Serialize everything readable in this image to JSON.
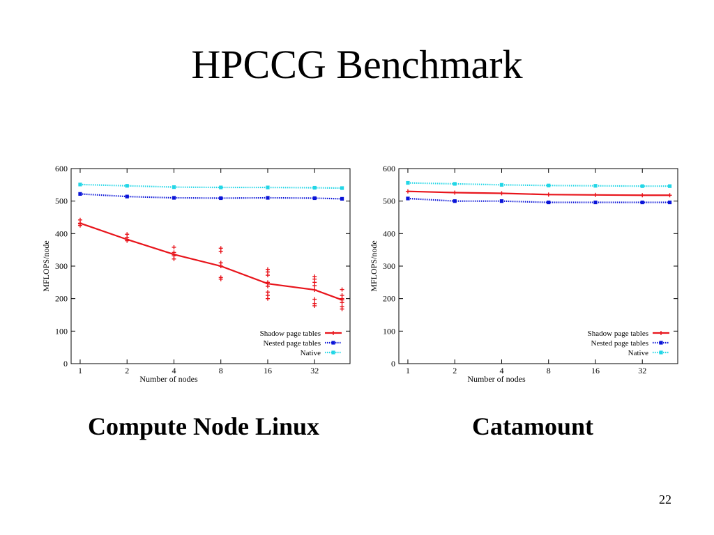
{
  "slide": {
    "title": "HPCCG Benchmark",
    "page_number": "22"
  },
  "colors": {
    "shadow": "#e8141b",
    "nested": "#0a14d8",
    "native": "#22d6e6",
    "axis": "#000000"
  },
  "chart_data": [
    {
      "type": "line",
      "caption": "Compute Node Linux",
      "xlabel": "Number of nodes",
      "ylabel": "MFLOPS/node",
      "ylim": [
        0,
        600
      ],
      "yticks": [
        0,
        100,
        200,
        300,
        400,
        500,
        600
      ],
      "x_scale": "log2",
      "xticks": [
        1,
        2,
        4,
        8,
        16,
        32
      ],
      "xlim": [
        0.875,
        54
      ],
      "grid": false,
      "legend_position": "bottom-right",
      "series": [
        {
          "name": "Shadow page tables",
          "color": "#e8141b",
          "marker": "plus",
          "x": [
            1,
            2,
            4,
            8,
            16,
            32,
            48
          ],
          "y": [
            432,
            382,
            336,
            300,
            246,
            227,
            196
          ]
        },
        {
          "name": "Nested page tables",
          "color": "#0a14d8",
          "marker": "square",
          "x": [
            1,
            2,
            4,
            8,
            16,
            32,
            48
          ],
          "y": [
            522,
            514,
            510,
            509,
            510,
            509,
            507
          ]
        },
        {
          "name": "Native",
          "color": "#22d6e6",
          "marker": "square",
          "x": [
            1,
            2,
            4,
            8,
            16,
            32,
            48
          ],
          "y": [
            551,
            547,
            543,
            542,
            542,
            541,
            540
          ]
        }
      ],
      "scatter": {
        "series": "Shadow page tables",
        "points": [
          [
            1,
            442
          ],
          [
            1,
            430
          ],
          [
            1,
            425
          ],
          [
            2,
            398
          ],
          [
            2,
            388
          ],
          [
            2,
            378
          ],
          [
            4,
            358
          ],
          [
            4,
            342
          ],
          [
            4,
            332
          ],
          [
            4,
            322
          ],
          [
            8,
            355
          ],
          [
            8,
            345
          ],
          [
            8,
            310
          ],
          [
            8,
            300
          ],
          [
            8,
            265
          ],
          [
            8,
            260
          ],
          [
            16,
            290
          ],
          [
            16,
            282
          ],
          [
            16,
            272
          ],
          [
            16,
            250
          ],
          [
            16,
            238
          ],
          [
            16,
            220
          ],
          [
            16,
            210
          ],
          [
            16,
            200
          ],
          [
            32,
            268
          ],
          [
            32,
            260
          ],
          [
            32,
            250
          ],
          [
            32,
            240
          ],
          [
            32,
            198
          ],
          [
            32,
            185
          ],
          [
            32,
            178
          ],
          [
            48,
            228
          ],
          [
            48,
            210
          ],
          [
            48,
            200
          ],
          [
            48,
            188
          ],
          [
            48,
            175
          ],
          [
            48,
            168
          ]
        ]
      }
    },
    {
      "type": "line",
      "caption": "Catamount",
      "xlabel": "Number of nodes",
      "ylabel": "MFLOPS/node",
      "ylim": [
        0,
        600
      ],
      "yticks": [
        0,
        100,
        200,
        300,
        400,
        500,
        600
      ],
      "x_scale": "log2",
      "xticks": [
        1,
        2,
        4,
        8,
        16,
        32
      ],
      "xlim": [
        0.875,
        54
      ],
      "grid": false,
      "legend_position": "bottom-right",
      "series": [
        {
          "name": "Shadow page tables",
          "color": "#e8141b",
          "marker": "plus",
          "x": [
            1,
            2,
            4,
            8,
            16,
            32,
            48
          ],
          "y": [
            530,
            526,
            524,
            520,
            519,
            518,
            518
          ]
        },
        {
          "name": "Nested page tables",
          "color": "#0a14d8",
          "marker": "square",
          "x": [
            1,
            2,
            4,
            8,
            16,
            32,
            48
          ],
          "y": [
            508,
            500,
            500,
            496,
            496,
            496,
            496
          ]
        },
        {
          "name": "Native",
          "color": "#22d6e6",
          "marker": "square",
          "x": [
            1,
            2,
            4,
            8,
            16,
            32,
            48
          ],
          "y": [
            556,
            553,
            550,
            548,
            547,
            546,
            546
          ]
        }
      ]
    }
  ]
}
